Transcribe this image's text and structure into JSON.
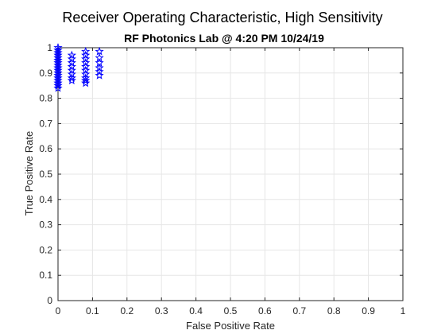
{
  "chart_data": {
    "type": "scatter",
    "title": "Receiver Operating Characteristic, High Sensitivity",
    "subtitle": "RF Photonics Lab @ 4:20 PM 10/24/19",
    "xlabel": "False Positive Rate",
    "ylabel": "True Positive Rate",
    "xlim": [
      0,
      1
    ],
    "ylim": [
      0,
      1
    ],
    "xticks": [
      "0",
      "0.1",
      "0.2",
      "0.3",
      "0.4",
      "0.5",
      "0.6",
      "0.7",
      "0.8",
      "0.9",
      "1"
    ],
    "yticks": [
      "0",
      "0.1",
      "0.2",
      "0.3",
      "0.4",
      "0.5",
      "0.6",
      "0.7",
      "0.8",
      "0.9",
      "1"
    ],
    "grid": true,
    "marker": "pentagram",
    "marker_color": "#0000ff",
    "series": [
      {
        "x": [
          0,
          0,
          0,
          0,
          0,
          0,
          0,
          0,
          0,
          0,
          0,
          0,
          0,
          0,
          0,
          0,
          0,
          0.04,
          0.04,
          0.04,
          0.04,
          0.04,
          0.04,
          0.04,
          0.04,
          0.08,
          0.08,
          0.08,
          0.08,
          0.08,
          0.08,
          0.08,
          0.08,
          0.08,
          0.08,
          0.12,
          0.12,
          0.12,
          0.12,
          0.12,
          0.12
        ],
        "y": [
          1.0,
          0.99,
          0.98,
          0.97,
          0.96,
          0.95,
          0.94,
          0.93,
          0.92,
          0.91,
          0.9,
          0.89,
          0.88,
          0.87,
          0.86,
          0.85,
          0.84,
          0.97,
          0.955,
          0.94,
          0.925,
          0.91,
          0.895,
          0.88,
          0.87,
          0.985,
          0.97,
          0.955,
          0.94,
          0.925,
          0.91,
          0.895,
          0.88,
          0.87,
          0.86,
          0.985,
          0.96,
          0.94,
          0.92,
          0.905,
          0.89
        ]
      }
    ]
  }
}
